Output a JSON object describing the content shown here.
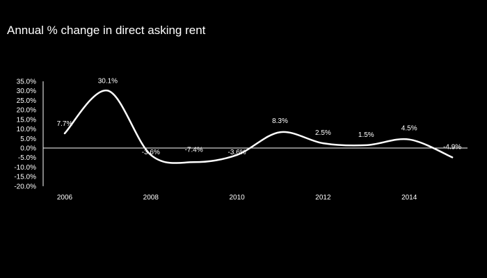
{
  "chart_data": {
    "type": "line",
    "title": "Annual % change in direct asking rent",
    "x": [
      2006,
      2007,
      2008,
      2009,
      2010,
      2011,
      2012,
      2013,
      2014,
      2015
    ],
    "series": [
      {
        "values": [
          7.7,
          30.1,
          -3.6,
          -7.4,
          -3.6,
          8.3,
          2.5,
          1.5,
          4.5,
          -4.9
        ]
      }
    ],
    "data_labels": [
      "7.7%",
      "30.1%",
      "-3.6%",
      "-7.4%",
      "-3.6%",
      "8.3%",
      "2.5%",
      "1.5%",
      "4.5%",
      "-4.9%"
    ],
    "y_ticks": [
      "35.0%",
      "30.0%",
      "25.0%",
      "20.0%",
      "15.0%",
      "10.0%",
      "5.0%",
      "0.0%",
      "-5.0%",
      "-10.0%",
      "-15.0%",
      "-20.0%"
    ],
    "y_tick_values": [
      35,
      30,
      25,
      20,
      15,
      10,
      5,
      0,
      -5,
      -10,
      -15,
      -20
    ],
    "x_ticks": [
      "2006",
      "2008",
      "2010",
      "2012",
      "2014"
    ],
    "x_tick_values": [
      2006,
      2008,
      2010,
      2012,
      2014
    ],
    "ylim": [
      -20,
      35
    ],
    "xlabel": "",
    "ylabel": "",
    "grid": false,
    "line_color": "#ffffff",
    "background": "#000000"
  }
}
